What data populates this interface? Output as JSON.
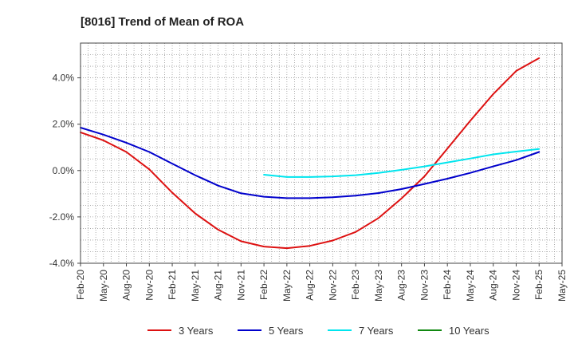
{
  "chart_data": {
    "type": "line",
    "title": "[8016]  Trend of Mean of ROA",
    "xlabel": "",
    "ylabel": "",
    "ylim": [
      -4.0,
      5.5
    ],
    "yticks": [
      -4.0,
      -2.0,
      0.0,
      2.0,
      4.0
    ],
    "ytick_labels": [
      "-4.0%",
      "-2.0%",
      "0.0%",
      "2.0%",
      "4.0%"
    ],
    "x_tick_labels": [
      "Feb-20",
      "May-20",
      "Aug-20",
      "Nov-20",
      "Feb-21",
      "May-21",
      "Aug-21",
      "Nov-21",
      "Feb-22",
      "May-22",
      "Aug-22",
      "Nov-22",
      "Feb-23",
      "May-23",
      "Aug-23",
      "Nov-23",
      "Feb-24",
      "May-24",
      "Aug-24",
      "Nov-24",
      "Feb-25",
      "May-25"
    ],
    "grid": true,
    "legend_position": "bottom",
    "series": [
      {
        "name": "3 Years",
        "color": "#dd1111",
        "start_index": 0,
        "values": [
          1.65,
          1.3,
          0.8,
          0.05,
          -0.95,
          -1.85,
          -2.55,
          -3.05,
          -3.28,
          -3.35,
          -3.25,
          -3.02,
          -2.65,
          -2.05,
          -1.2,
          -0.25,
          0.95,
          2.15,
          3.3,
          4.3,
          4.85
        ]
      },
      {
        "name": "5 Years",
        "color": "#0000cc",
        "start_index": 0,
        "values": [
          1.85,
          1.55,
          1.2,
          0.8,
          0.3,
          -0.2,
          -0.65,
          -0.98,
          -1.13,
          -1.19,
          -1.19,
          -1.15,
          -1.08,
          -0.97,
          -0.8,
          -0.58,
          -0.35,
          -0.1,
          0.18,
          0.45,
          0.8
        ]
      },
      {
        "name": "7 Years",
        "color": "#00e5ee",
        "start_index": 8,
        "values": [
          -0.18,
          -0.28,
          -0.28,
          -0.25,
          -0.2,
          -0.1,
          0.03,
          0.18,
          0.35,
          0.52,
          0.7,
          0.82,
          0.93
        ]
      },
      {
        "name": "10 Years",
        "color": "#118811",
        "start_index": 0,
        "values": []
      }
    ]
  }
}
